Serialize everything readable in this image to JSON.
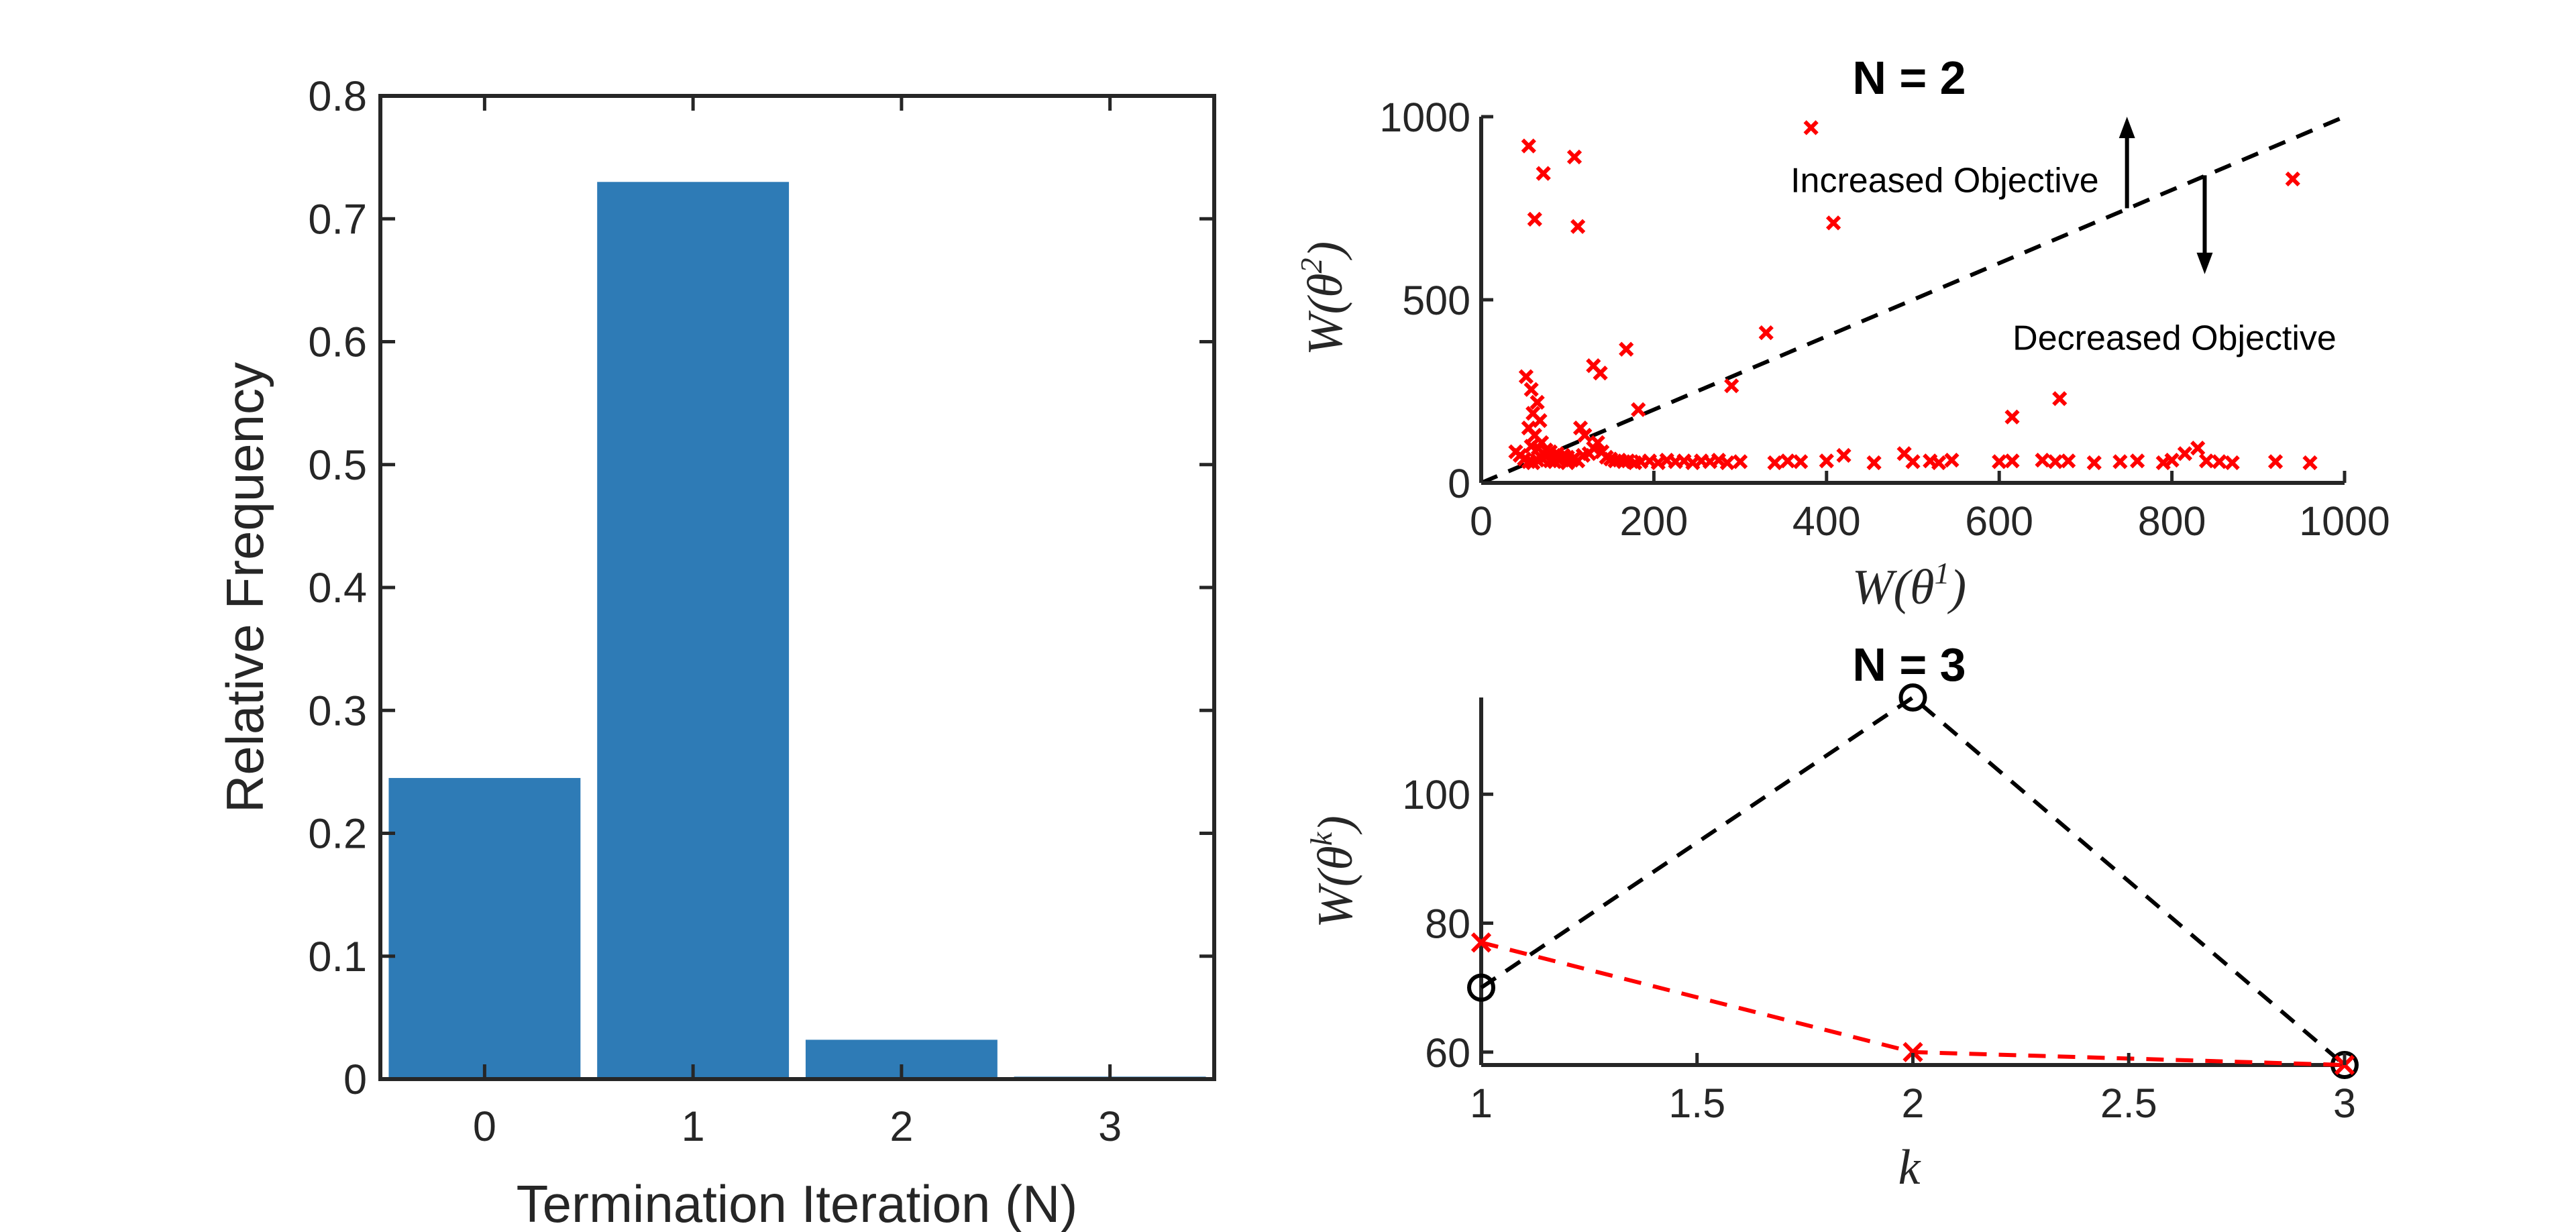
{
  "chart_data": [
    {
      "type": "bar",
      "xlabel": "Termination Iteration (N)",
      "ylabel": "Relative Frequency",
      "categories": [
        "0",
        "1",
        "2",
        "3"
      ],
      "values": [
        0.245,
        0.73,
        0.032,
        0.002
      ],
      "ylim": [
        0,
        0.8
      ],
      "yticks": [
        "0",
        "0.1",
        "0.2",
        "0.3",
        "0.4",
        "0.5",
        "0.6",
        "0.7",
        "0.8"
      ],
      "bar_color": "#2e7bb6",
      "grid": false
    },
    {
      "type": "scatter",
      "title": "N = 2",
      "xlabel_base": "W(θ",
      "xlabel_sup": "1",
      "ylabel_base": "W(θ",
      "ylabel_sup": "2",
      "xlim": [
        0,
        1000
      ],
      "ylim": [
        0,
        1000
      ],
      "xticks": [
        "0",
        "200",
        "400",
        "600",
        "800",
        "1000"
      ],
      "yticks": [
        "0",
        "500",
        "1000"
      ],
      "marker_color": "#ff0000",
      "reference_line": {
        "from": [
          0,
          0
        ],
        "to": [
          1000,
          1000
        ],
        "style": "dashed",
        "color": "#000000"
      },
      "annotations": [
        {
          "text": "Increased Objective",
          "arrow": "up",
          "at": [
            748,
            750
          ],
          "to": [
            748,
            1000
          ]
        },
        {
          "text": "Decreased Objective",
          "arrow": "down",
          "at": [
            838,
            840
          ],
          "to": [
            838,
            570
          ]
        }
      ],
      "points": [
        [
          55,
          920
        ],
        [
          72,
          845
        ],
        [
          108,
          890
        ],
        [
          62,
          720
        ],
        [
          112,
          700
        ],
        [
          382,
          970
        ],
        [
          408,
          710
        ],
        [
          940,
          830
        ],
        [
          130,
          320
        ],
        [
          138,
          300
        ],
        [
          168,
          365
        ],
        [
          182,
          200
        ],
        [
          290,
          265
        ],
        [
          330,
          410
        ],
        [
          670,
          230
        ],
        [
          615,
          180
        ],
        [
          52,
          290
        ],
        [
          58,
          255
        ],
        [
          65,
          220
        ],
        [
          60,
          190
        ],
        [
          68,
          170
        ],
        [
          55,
          150
        ],
        [
          62,
          130
        ],
        [
          70,
          110
        ],
        [
          58,
          100
        ],
        [
          66,
          95
        ],
        [
          75,
          90
        ],
        [
          80,
          85
        ],
        [
          88,
          80
        ],
        [
          95,
          75
        ],
        [
          100,
          70
        ],
        [
          108,
          68
        ],
        [
          112,
          60
        ],
        [
          118,
          75
        ],
        [
          125,
          80
        ],
        [
          130,
          95
        ],
        [
          135,
          110
        ],
        [
          140,
          85
        ],
        [
          145,
          70
        ],
        [
          150,
          65
        ],
        [
          155,
          60
        ],
        [
          160,
          62
        ],
        [
          165,
          58
        ],
        [
          170,
          60
        ],
        [
          178,
          55
        ],
        [
          185,
          58
        ],
        [
          195,
          60
        ],
        [
          205,
          55
        ],
        [
          215,
          62
        ],
        [
          225,
          58
        ],
        [
          235,
          60
        ],
        [
          245,
          55
        ],
        [
          255,
          60
        ],
        [
          265,
          58
        ],
        [
          275,
          62
        ],
        [
          285,
          55
        ],
        [
          300,
          58
        ],
        [
          340,
          55
        ],
        [
          355,
          60
        ],
        [
          370,
          58
        ],
        [
          400,
          60
        ],
        [
          420,
          75
        ],
        [
          455,
          55
        ],
        [
          490,
          80
        ],
        [
          500,
          58
        ],
        [
          520,
          60
        ],
        [
          530,
          55
        ],
        [
          545,
          62
        ],
        [
          600,
          58
        ],
        [
          615,
          60
        ],
        [
          650,
          62
        ],
        [
          665,
          58
        ],
        [
          680,
          60
        ],
        [
          710,
          55
        ],
        [
          740,
          58
        ],
        [
          760,
          60
        ],
        [
          790,
          55
        ],
        [
          800,
          62
        ],
        [
          815,
          80
        ],
        [
          830,
          95
        ],
        [
          840,
          60
        ],
        [
          855,
          58
        ],
        [
          870,
          55
        ],
        [
          920,
          58
        ],
        [
          960,
          55
        ],
        [
          40,
          85
        ],
        [
          45,
          75
        ],
        [
          50,
          65
        ],
        [
          55,
          58
        ],
        [
          60,
          55
        ],
        [
          65,
          62
        ],
        [
          70,
          68
        ],
        [
          75,
          72
        ],
        [
          80,
          60
        ],
        [
          85,
          58
        ],
        [
          90,
          62
        ],
        [
          100,
          55
        ],
        [
          105,
          62
        ],
        [
          115,
          150
        ],
        [
          120,
          130
        ]
      ]
    },
    {
      "type": "line",
      "title": "N = 3",
      "xlabel": "k",
      "ylabel_base": "W(θ",
      "ylabel_sup": "k",
      "xlim": [
        1,
        3
      ],
      "ylim": [
        58,
        115
      ],
      "xticks": [
        "1",
        "1.5",
        "2",
        "2.5",
        "3"
      ],
      "yticks": [
        "60",
        "80",
        "100"
      ],
      "series": [
        {
          "x": [
            1,
            2,
            3
          ],
          "y": [
            70,
            115,
            58
          ],
          "color": "#000000",
          "marker": "o",
          "style": "dashed"
        },
        {
          "x": [
            1,
            2,
            3
          ],
          "y": [
            77,
            60,
            58
          ],
          "color": "#ff0000",
          "marker": "x",
          "style": "dashed"
        }
      ]
    }
  ]
}
